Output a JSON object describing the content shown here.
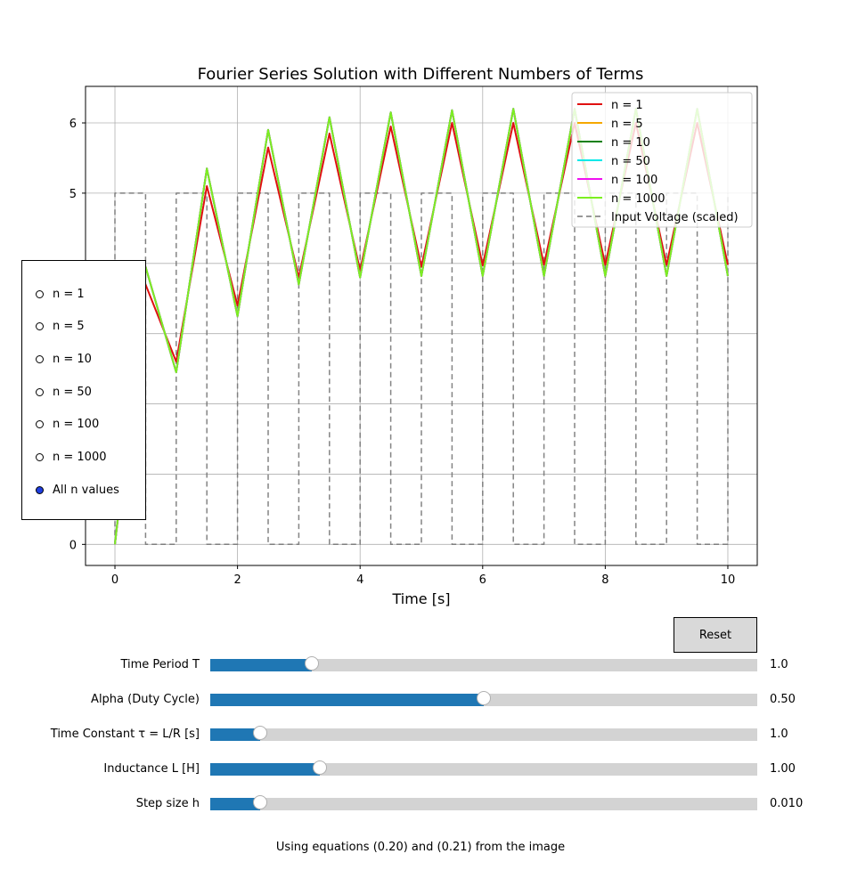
{
  "chart_data": {
    "type": "line",
    "title": "Fourier Series Solution with Different Numbers of Terms",
    "xlabel": "Time [s]",
    "ylabel": "",
    "xlim": [
      -0.48,
      10.48
    ],
    "ylim": [
      -0.3,
      6.52
    ],
    "xticks": [
      0,
      2,
      4,
      6,
      8,
      10
    ],
    "yticks": [
      0,
      5,
      6
    ],
    "grid": true,
    "legend_position": "top-right",
    "series": [
      {
        "name": "n = 1",
        "color": "#e01010",
        "x": [
          0,
          0.5,
          1.0,
          1.5,
          2.0,
          2.5,
          3.0,
          3.5,
          4.0,
          4.5,
          5.0,
          5.5,
          6.0,
          6.5,
          7.0,
          7.5,
          8.0,
          8.5,
          9.0,
          9.5,
          10.0
        ],
        "y": [
          0,
          3.7,
          2.6,
          5.1,
          3.4,
          5.65,
          3.8,
          5.85,
          3.9,
          5.95,
          3.95,
          6.0,
          3.97,
          6.0,
          3.98,
          6.0,
          3.98,
          6.0,
          3.98,
          6.0,
          3.98
        ]
      },
      {
        "name": "n = 5",
        "color": "#f5a800",
        "x": [
          0,
          0.5,
          1.0,
          1.5,
          2.0,
          2.5,
          3.0,
          3.5,
          4.0,
          4.5,
          5.0,
          5.5,
          6.0,
          6.5,
          7.0,
          7.5,
          8.0,
          8.5,
          9.0,
          9.5,
          10.0
        ],
        "y": [
          0,
          3.95,
          2.45,
          5.35,
          3.25,
          5.9,
          3.7,
          6.08,
          3.8,
          6.15,
          3.82,
          6.18,
          3.82,
          6.2,
          3.82,
          6.2,
          3.82,
          6.2,
          3.82,
          6.2,
          3.82
        ]
      },
      {
        "name": "n = 10",
        "color": "#108010",
        "x": [
          0,
          0.5,
          1.0,
          1.5,
          2.0,
          2.5,
          3.0,
          3.5,
          4.0,
          4.5,
          5.0,
          5.5,
          6.0,
          6.5,
          7.0,
          7.5,
          8.0,
          8.5,
          9.0,
          9.5,
          10.0
        ],
        "y": [
          0,
          3.95,
          2.45,
          5.35,
          3.25,
          5.9,
          3.7,
          6.08,
          3.8,
          6.15,
          3.82,
          6.18,
          3.82,
          6.2,
          3.82,
          6.2,
          3.82,
          6.2,
          3.82,
          6.2,
          3.82
        ]
      },
      {
        "name": "n = 50",
        "color": "#00e8e8",
        "x": [
          0,
          0.5,
          1.0,
          1.5,
          2.0,
          2.5,
          3.0,
          3.5,
          4.0,
          4.5,
          5.0,
          5.5,
          6.0,
          6.5,
          7.0,
          7.5,
          8.0,
          8.5,
          9.0,
          9.5,
          10.0
        ],
        "y": [
          0,
          3.95,
          2.45,
          5.35,
          3.25,
          5.9,
          3.7,
          6.08,
          3.8,
          6.15,
          3.82,
          6.18,
          3.82,
          6.2,
          3.82,
          6.2,
          3.82,
          6.2,
          3.82,
          6.2,
          3.82
        ]
      },
      {
        "name": "n = 100",
        "color": "#f010f0",
        "x": [
          0,
          0.5,
          1.0,
          1.5,
          2.0,
          2.5,
          3.0,
          3.5,
          4.0,
          4.5,
          5.0,
          5.5,
          6.0,
          6.5,
          7.0,
          7.5,
          8.0,
          8.5,
          9.0,
          9.5,
          10.0
        ],
        "y": [
          0,
          3.95,
          2.45,
          5.35,
          3.25,
          5.9,
          3.7,
          6.08,
          3.8,
          6.15,
          3.82,
          6.18,
          3.82,
          6.2,
          3.82,
          6.2,
          3.82,
          6.2,
          3.82,
          6.2,
          3.82
        ]
      },
      {
        "name": "n = 1000",
        "color": "#7cf020",
        "x": [
          0,
          0.5,
          1.0,
          1.5,
          2.0,
          2.5,
          3.0,
          3.5,
          4.0,
          4.5,
          5.0,
          5.5,
          6.0,
          6.5,
          7.0,
          7.5,
          8.0,
          8.5,
          9.0,
          9.5,
          10.0
        ],
        "y": [
          0,
          3.95,
          2.45,
          5.35,
          3.25,
          5.9,
          3.7,
          6.08,
          3.8,
          6.15,
          3.82,
          6.18,
          3.82,
          6.2,
          3.82,
          6.2,
          3.82,
          6.2,
          3.82,
          6.2,
          3.82
        ]
      },
      {
        "name": "Input Voltage (scaled)",
        "color": "#777777",
        "style": "dashed",
        "x": [
          0,
          0,
          0.5,
          0.5,
          1.0,
          1.0,
          1.5,
          1.5,
          2.0,
          2.0,
          2.5,
          2.5,
          3.0,
          3.0,
          3.5,
          3.5,
          4.0,
          4.0,
          4.5,
          4.5,
          5.0,
          5.0,
          5.5,
          5.5,
          6.0,
          6.0,
          6.5,
          6.5,
          7.0,
          7.0,
          7.5,
          7.5,
          8.0,
          8.0,
          8.5,
          8.5,
          9.0,
          9.0,
          9.5,
          9.5,
          10.0,
          10.0
        ],
        "y": [
          0,
          5,
          5,
          0,
          0,
          5,
          5,
          0,
          0,
          5,
          5,
          0,
          0,
          5,
          5,
          0,
          0,
          5,
          5,
          0,
          0,
          5,
          5,
          0,
          0,
          5,
          5,
          0,
          0,
          5,
          5,
          0,
          0,
          5,
          5,
          0,
          0,
          5,
          5,
          0,
          0,
          5
        ]
      }
    ]
  },
  "radio": {
    "selected": 6,
    "options": [
      "n = 1",
      "n = 5",
      "n = 10",
      "n = 50",
      "n = 100",
      "n = 1000",
      "All n values"
    ]
  },
  "reset_label": "Reset",
  "sliders": [
    {
      "label": "Time Period T",
      "value_text": "1.0",
      "fraction": 0.185
    },
    {
      "label": "Alpha (Duty Cycle)",
      "value_text": "0.50",
      "fraction": 0.5
    },
    {
      "label": "Time Constant τ = L/R [s]",
      "value_text": "1.0",
      "fraction": 0.092
    },
    {
      "label": "Inductance L [H]",
      "value_text": "1.00",
      "fraction": 0.2
    },
    {
      "label": "Step size h",
      "value_text": "0.010",
      "fraction": 0.092
    }
  ],
  "footnote": "Using equations (0.20) and (0.21) from the image"
}
